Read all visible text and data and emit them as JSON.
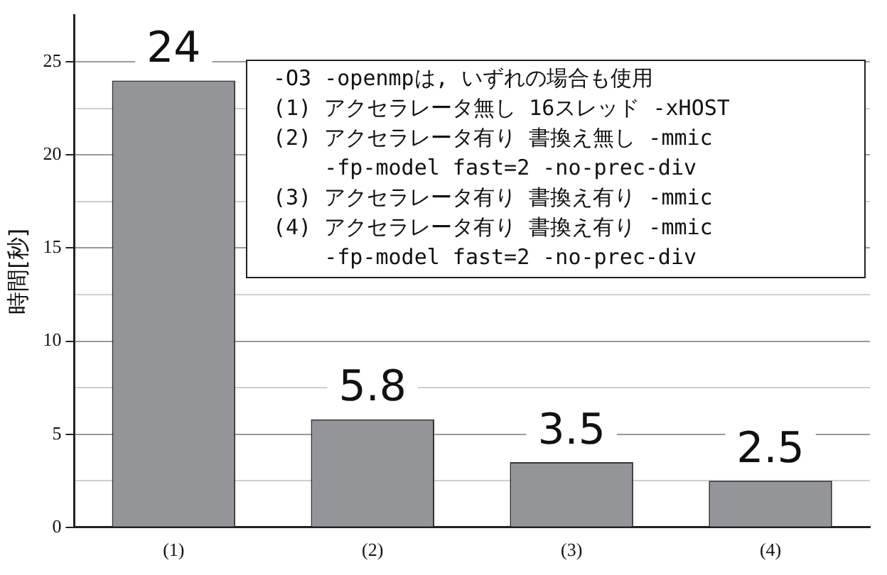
{
  "chart_data": {
    "type": "bar",
    "ylabel": "時間[秒]",
    "categories": [
      "(1)",
      "(2)",
      "(3)",
      "(4)"
    ],
    "values": [
      24,
      5.8,
      3.5,
      2.5
    ],
    "color": "#939598",
    "data_labels": true,
    "ylim": [
      0,
      27.5
    ],
    "yticks": [
      0,
      {
        "value": 2.5,
        "label": null
      },
      5,
      {
        "value": 7.5,
        "label": null
      },
      10,
      {
        "value": 12.5,
        "label": null
      },
      15,
      {
        "value": 17.5,
        "label": null
      },
      20,
      {
        "value": 22.5,
        "label": null
      },
      25
    ],
    "grid": "y",
    "annotations": [
      "-O3 -openmpは, いずれの場合も使用",
      "(1) アクセラレータ無し 16スレッド -xHOST",
      "(2) アクセラレータ有り 書換え無し -mmic",
      "    -fp-model fast=2 -no-prec-div",
      "(3) アクセラレータ有り 書換え有り -mmic",
      "(4) アクセラレータ有り 書換え有り -mmic",
      "    -fp-model fast=2 -no-prec-div"
    ]
  }
}
